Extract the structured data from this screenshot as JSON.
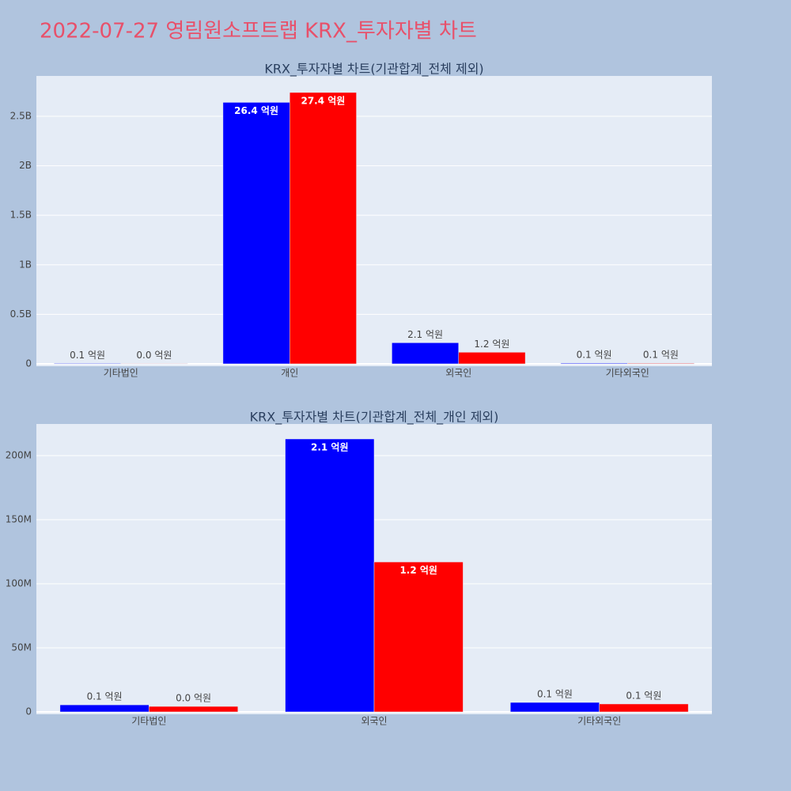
{
  "title": "2022-07-27 영림원소프트랩 KRX_투자자별 차트",
  "chart_data": [
    {
      "type": "bar",
      "title": "KRX_투자자별 차트(기관합계_전체 제외)",
      "categories": [
        "기타법인",
        "개인",
        "외국인",
        "기타외국인"
      ],
      "series": [
        {
          "color": "#0000ff",
          "values": [
            5500000,
            2640000000,
            213000000,
            7400000
          ],
          "value_labels": [
            "0.1 억원",
            "26.4 억원",
            "2.1 억원",
            "0.1 억원"
          ]
        },
        {
          "color": "#ff0000",
          "values": [
            4300000,
            2740000000,
            117000000,
            6200000
          ],
          "value_labels": [
            "0.0 억원",
            "27.4 억원",
            "1.2 억원",
            "0.1 억원"
          ]
        }
      ],
      "ylim": [
        -24000000,
        2907000000
      ],
      "yticks": [
        0,
        {
          "value": 500000000,
          "label": "0.5B"
        },
        {
          "value": 1000000000,
          "label": "1B"
        },
        {
          "value": 1500000000,
          "label": "1.5B"
        },
        {
          "value": 2000000000,
          "label": "2B"
        },
        {
          "value": 2500000000,
          "label": "2.5B"
        }
      ],
      "grid": true
    },
    {
      "type": "bar",
      "title": "KRX_투자자별 차트(기관합계_전체_개인 제외)",
      "categories": [
        "기타법인",
        "외국인",
        "기타외국인"
      ],
      "series": [
        {
          "color": "#0000ff",
          "values": [
            5500000,
            213000000,
            7400000
          ],
          "value_labels": [
            "0.1 억원",
            "2.1 억원",
            "0.1 억원"
          ]
        },
        {
          "color": "#ff0000",
          "values": [
            4300000,
            117000000,
            6200000
          ],
          "value_labels": [
            "0.0 억원",
            "1.2 억원",
            "0.1 억원"
          ]
        }
      ],
      "ylim": [
        -1850000,
        224700000
      ],
      "yticks": [
        0,
        {
          "value": 50000000,
          "label": "50M"
        },
        {
          "value": 100000000,
          "label": "100M"
        },
        {
          "value": 150000000,
          "label": "150M"
        },
        {
          "value": 200000000,
          "label": "200M"
        }
      ],
      "grid": true
    }
  ]
}
